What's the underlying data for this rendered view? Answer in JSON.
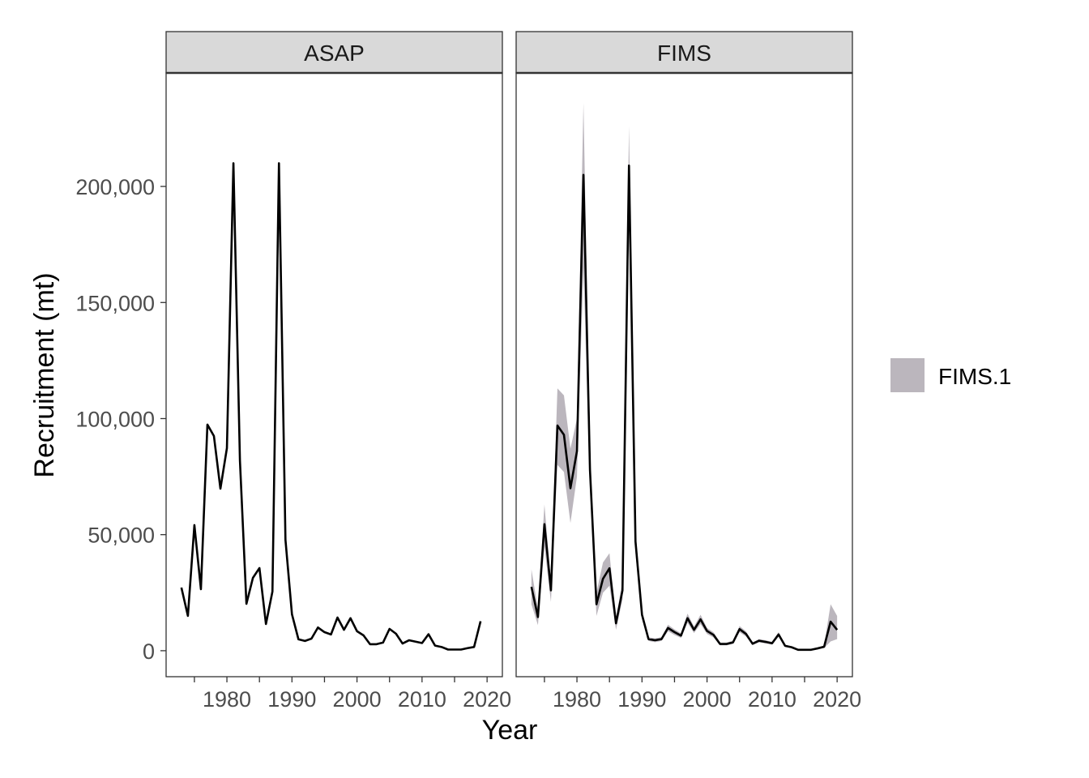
{
  "chart_data": {
    "type": "line",
    "xlabel": "Year",
    "ylabel": "Recruitment (mt)",
    "xlim": [
      1970.65,
      2022.35
    ],
    "ylim": [
      -11200,
      248900
    ],
    "x_ticks": [
      1980,
      1990,
      2000,
      2010,
      2020
    ],
    "y_ticks": [
      0,
      50000,
      100000,
      150000,
      200000
    ],
    "y_tick_labels": [
      "0",
      "50,000",
      "100,000",
      "150,000",
      "200,000"
    ],
    "grid": false,
    "legend": {
      "position": "right",
      "entries": [
        {
          "label": "FIMS.1",
          "color": "#BBB6BD"
        }
      ]
    },
    "panels": [
      {
        "title": "ASAP",
        "x": [
          1973,
          1974,
          1975,
          1976,
          1977,
          1978,
          1979,
          1980,
          1981,
          1982,
          1983,
          1984,
          1985,
          1986,
          1987,
          1988,
          1989,
          1990,
          1991,
          1992,
          1993,
          1994,
          1995,
          1996,
          1997,
          1998,
          1999,
          2000,
          2001,
          2002,
          2003,
          2004,
          2005,
          2006,
          2007,
          2008,
          2009,
          2010,
          2011,
          2012,
          2013,
          2014,
          2015,
          2016,
          2017,
          2018,
          2019
        ],
        "values": [
          27200,
          15000,
          54100,
          26500,
          97400,
          92500,
          69800,
          87300,
          210000,
          82000,
          20200,
          31400,
          35600,
          11500,
          25500,
          210000,
          47800,
          15700,
          4900,
          4200,
          5200,
          10000,
          8000,
          7000,
          14300,
          9000,
          14000,
          8400,
          6600,
          2800,
          2800,
          3500,
          9400,
          7300,
          3100,
          4500,
          3900,
          3300,
          7100,
          2200,
          1600,
          500,
          500,
          500,
          1100,
          1600,
          12700
        ]
      },
      {
        "title": "FIMS",
        "x": [
          1973,
          1974,
          1975,
          1976,
          1977,
          1978,
          1979,
          1980,
          1981,
          1982,
          1983,
          1984,
          1985,
          1986,
          1987,
          1988,
          1989,
          1990,
          1991,
          1992,
          1993,
          1994,
          1995,
          1996,
          1997,
          1998,
          1999,
          2000,
          2001,
          2002,
          2003,
          2004,
          2005,
          2006,
          2007,
          2008,
          2009,
          2010,
          2011,
          2012,
          2013,
          2014,
          2015,
          2016,
          2017,
          2018,
          2019,
          2020
        ],
        "values": [
          27500,
          14500,
          54500,
          26000,
          97000,
          93000,
          70000,
          86000,
          205000,
          78000,
          20000,
          31000,
          35500,
          11800,
          26000,
          209000,
          47000,
          15500,
          5000,
          4500,
          5000,
          9800,
          8000,
          6500,
          14000,
          9000,
          13500,
          8500,
          6800,
          2900,
          2900,
          3600,
          9300,
          7200,
          3000,
          4300,
          3800,
          3200,
          7000,
          2100,
          1500,
          400,
          400,
          400,
          1000,
          1700,
          12500,
          9000
        ],
        "lower": [
          20000,
          11000,
          45000,
          21000,
          80000,
          77000,
          55000,
          75000,
          165000,
          70000,
          15000,
          25000,
          28000,
          9000,
          22000,
          195000,
          42000,
          13500,
          4200,
          3700,
          4200,
          8400,
          6800,
          5500,
          12000,
          7600,
          11500,
          7200,
          5700,
          2300,
          2300,
          2900,
          8000,
          6100,
          2400,
          3600,
          3100,
          2600,
          6000,
          1600,
          1100,
          200,
          200,
          200,
          700,
          1100,
          4000,
          5000
        ],
        "upper": [
          35000,
          18000,
          63000,
          30000,
          113000,
          110000,
          87000,
          100000,
          236000,
          86000,
          25000,
          38000,
          42000,
          14000,
          30000,
          226000,
          52000,
          17500,
          5800,
          5300,
          5800,
          11200,
          9200,
          7500,
          16000,
          10400,
          15500,
          9800,
          7900,
          3500,
          3500,
          4300,
          10600,
          8300,
          3600,
          5000,
          4500,
          3800,
          8000,
          2600,
          1900,
          600,
          600,
          600,
          1300,
          2300,
          20000,
          15000
        ]
      }
    ]
  }
}
